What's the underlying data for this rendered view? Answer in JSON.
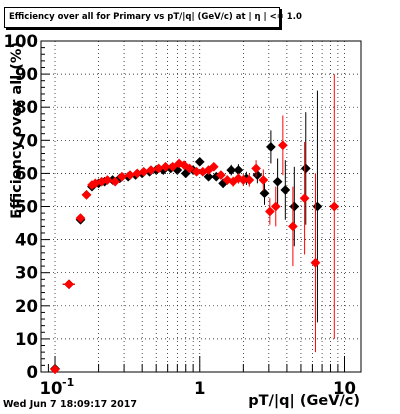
{
  "title": "Efficiency over all for Primary vs pT/|q| (GeV/c) at | η | <= 1.0",
  "footer_date": "Wed Jun  7 18:09:17 2017",
  "colors": {
    "black_series": "#000000",
    "red_series": "#ff0000",
    "frame": "#000000"
  },
  "chart_data": {
    "type": "scatter",
    "title": "Efficiency over all for Primary vs pT/|q| (GeV/c) at | η | <= 1.0",
    "xlabel": "pT/|q| (GeV/c)",
    "ylabel": "Efficiency over all (%)",
    "xscale": "log",
    "xlim": [
      0.08,
      13
    ],
    "ylim": [
      0,
      100
    ],
    "grid": true,
    "x_tick_labels": [
      {
        "value": 0.1,
        "label": "10",
        "exponent": "-1"
      },
      {
        "value": 1,
        "label": "1",
        "exponent": ""
      },
      {
        "value": 10,
        "label": "10",
        "exponent": ""
      }
    ],
    "y_ticks": [
      0,
      10,
      20,
      30,
      40,
      50,
      60,
      70,
      80,
      90,
      100
    ],
    "series": [
      {
        "color": "#000000",
        "marker": "diamond",
        "points": [
          {
            "x": 0.1,
            "y": 1,
            "ey": 0.3
          },
          {
            "x": 0.125,
            "y": 26.5,
            "ey": 1.0,
            "ex": 0.012
          },
          {
            "x": 0.15,
            "y": 46,
            "ey": 1.2
          },
          {
            "x": 0.165,
            "y": 53.5,
            "ey": 1.0
          },
          {
            "x": 0.18,
            "y": 56,
            "ey": 0.8
          },
          {
            "x": 0.2,
            "y": 57,
            "ey": 0.8
          },
          {
            "x": 0.22,
            "y": 57.5,
            "ey": 0.7
          },
          {
            "x": 0.25,
            "y": 58,
            "ey": 0.7
          },
          {
            "x": 0.28,
            "y": 58.5,
            "ey": 0.7
          },
          {
            "x": 0.32,
            "y": 59,
            "ey": 0.7
          },
          {
            "x": 0.36,
            "y": 59.5,
            "ey": 0.7
          },
          {
            "x": 0.4,
            "y": 60,
            "ey": 0.7
          },
          {
            "x": 0.45,
            "y": 60.5,
            "ey": 0.8
          },
          {
            "x": 0.5,
            "y": 61,
            "ey": 0.8
          },
          {
            "x": 0.56,
            "y": 61,
            "ey": 0.8
          },
          {
            "x": 0.63,
            "y": 61.5,
            "ey": 0.9
          },
          {
            "x": 0.7,
            "y": 61,
            "ey": 0.9
          },
          {
            "x": 0.8,
            "y": 60,
            "ey": 1.0
          },
          {
            "x": 0.9,
            "y": 61,
            "ey": 1.0
          },
          {
            "x": 1.0,
            "y": 63.5,
            "ey": 1.1
          },
          {
            "x": 1.15,
            "y": 59,
            "ey": 1.2
          },
          {
            "x": 1.3,
            "y": 59,
            "ey": 1.3
          },
          {
            "x": 1.45,
            "y": 57,
            "ey": 1.4
          },
          {
            "x": 1.65,
            "y": 61,
            "ey": 1.6
          },
          {
            "x": 1.85,
            "y": 61,
            "ey": 1.8
          },
          {
            "x": 2.1,
            "y": 58.5,
            "ey": 2.0
          },
          {
            "x": 2.5,
            "y": 59.5,
            "ey": 2.5
          },
          {
            "x": 2.8,
            "y": 54,
            "ey": 3.5
          },
          {
            "x": 3.1,
            "y": 68,
            "ey": 5
          },
          {
            "x": 3.45,
            "y": 57.5,
            "ey": 7
          },
          {
            "x": 3.9,
            "y": 55,
            "ey": 9
          },
          {
            "x": 4.5,
            "y": 50,
            "ey": 12
          },
          {
            "x": 5.4,
            "y": 61.5,
            "ey": 17
          },
          {
            "x": 6.5,
            "y": 50,
            "ey": 35
          }
        ]
      },
      {
        "color": "#ff0000",
        "marker": "diamond",
        "points": [
          {
            "x": 0.1,
            "y": 0.8,
            "ey": 0.3,
            "ex": 0.007
          },
          {
            "x": 0.125,
            "y": 26.5,
            "ey": 1.0,
            "ex": 0.012
          },
          {
            "x": 0.15,
            "y": 46.5,
            "ey": 1.2
          },
          {
            "x": 0.165,
            "y": 53.5,
            "ey": 1.0
          },
          {
            "x": 0.18,
            "y": 56.5,
            "ey": 0.8
          },
          {
            "x": 0.19,
            "y": 57,
            "ey": 0.8
          },
          {
            "x": 0.21,
            "y": 57.5,
            "ey": 0.7
          },
          {
            "x": 0.23,
            "y": 58,
            "ey": 0.7
          },
          {
            "x": 0.26,
            "y": 57.5,
            "ey": 0.7
          },
          {
            "x": 0.29,
            "y": 59,
            "ey": 0.7
          },
          {
            "x": 0.33,
            "y": 59.5,
            "ey": 0.7
          },
          {
            "x": 0.37,
            "y": 60,
            "ey": 0.7
          },
          {
            "x": 0.41,
            "y": 60.5,
            "ey": 0.8
          },
          {
            "x": 0.46,
            "y": 61,
            "ey": 0.8
          },
          {
            "x": 0.52,
            "y": 61.5,
            "ey": 0.8
          },
          {
            "x": 0.58,
            "y": 62,
            "ey": 0.8
          },
          {
            "x": 0.65,
            "y": 62,
            "ey": 0.9
          },
          {
            "x": 0.72,
            "y": 63,
            "ey": 0.9
          },
          {
            "x": 0.78,
            "y": 62.5,
            "ey": 1.0
          },
          {
            "x": 0.85,
            "y": 61.5,
            "ey": 1.0
          },
          {
            "x": 0.95,
            "y": 60.5,
            "ey": 1.0
          },
          {
            "x": 1.05,
            "y": 60.5,
            "ey": 1.1
          },
          {
            "x": 1.15,
            "y": 61,
            "ey": 1.1
          },
          {
            "x": 1.25,
            "y": 62,
            "ey": 1.2
          },
          {
            "x": 1.4,
            "y": 59.5,
            "ey": 1.3
          },
          {
            "x": 1.55,
            "y": 58,
            "ey": 1.4
          },
          {
            "x": 1.7,
            "y": 57.5,
            "ey": 1.5
          },
          {
            "x": 1.85,
            "y": 58.5,
            "ey": 1.6
          },
          {
            "x": 2.0,
            "y": 58,
            "ey": 1.8
          },
          {
            "x": 2.2,
            "y": 58,
            "ey": 2.0
          },
          {
            "x": 2.45,
            "y": 61.5,
            "ey": 2.5
          },
          {
            "x": 2.75,
            "y": 58,
            "ey": 3.2
          },
          {
            "x": 3.05,
            "y": 48.5,
            "ey": 4
          },
          {
            "x": 3.35,
            "y": 50,
            "ey": 6
          },
          {
            "x": 3.75,
            "y": 68.5,
            "ey": 9
          },
          {
            "x": 4.4,
            "y": 44,
            "ey": 12
          },
          {
            "x": 5.3,
            "y": 52.5,
            "ey": 17
          },
          {
            "x": 6.3,
            "y": 33,
            "ey": 27
          },
          {
            "x": 8.5,
            "y": 50,
            "ey": 40
          }
        ]
      }
    ]
  }
}
